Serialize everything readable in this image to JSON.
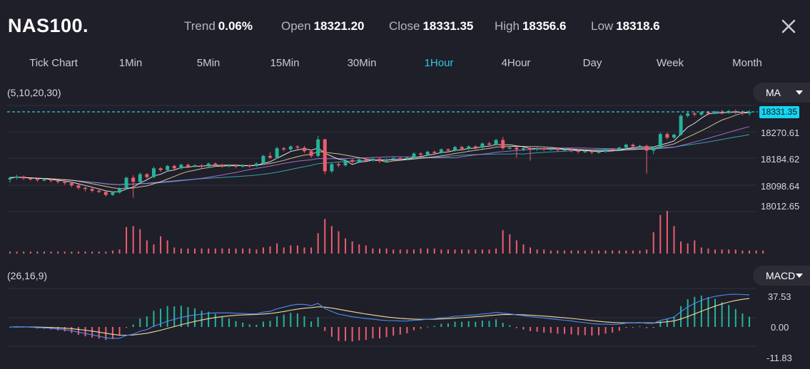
{
  "header": {
    "symbol": "NAS100.",
    "trend_label": "Trend",
    "trend_value": "0.06%",
    "open_label": "Open",
    "open_value": "18321.20",
    "close_label": "Close",
    "close_value": "18331.35",
    "high_label": "High",
    "high_value": "18356.6",
    "low_label": "Low",
    "low_value": "18318.6"
  },
  "timeframes": [
    "Tick Chart",
    "1Min",
    "5Min",
    "15Min",
    "30Min",
    "1Hour",
    "4Hour",
    "Day",
    "Week",
    "Month"
  ],
  "active_timeframe": "1Hour",
  "main_panel": {
    "params": "(5,10,20,30)",
    "indicator": "MA",
    "current_price": "18331.35",
    "axis_labels": [
      "18270.61",
      "18184.62",
      "18098.64",
      "18012.65"
    ]
  },
  "macd_panel": {
    "params": "(26,16,9)",
    "indicator": "MACD",
    "axis_labels": [
      "37.53",
      "0.00",
      "-11.83"
    ]
  },
  "colors": {
    "background": "#1e1f29",
    "up": "#26b39a",
    "down": "#ef5c6e",
    "accent": "#2ec9e2",
    "ma5": "#ffffff",
    "ma10": "#f2d9a0",
    "ma20": "#b37cf0",
    "ma30": "#3fb4c8",
    "dif": "#4c8df6",
    "dea": "#f2d9a0"
  },
  "icons": {
    "close": "close-icon",
    "dropdown": "caret-down-icon"
  },
  "chart_data": {
    "type": "candlestick",
    "ylim": [
      18012.65,
      18331.35
    ],
    "price_ticks": [
      18331.35,
      18270.61,
      18184.62,
      18098.64,
      18012.65
    ],
    "candles": [
      [
        18102,
        18108,
        18092,
        18112
      ],
      [
        18108,
        18112,
        18102,
        18118
      ],
      [
        18112,
        18106,
        18100,
        18116
      ],
      [
        18106,
        18104,
        18098,
        18110
      ],
      [
        18104,
        18100,
        18094,
        18108
      ],
      [
        18100,
        18102,
        18096,
        18106
      ],
      [
        18102,
        18098,
        18092,
        18106
      ],
      [
        18098,
        18094,
        18088,
        18102
      ],
      [
        18094,
        18090,
        18084,
        18098
      ],
      [
        18090,
        18082,
        18076,
        18094
      ],
      [
        18082,
        18074,
        18068,
        18086
      ],
      [
        18074,
        18070,
        18062,
        18078
      ],
      [
        18070,
        18064,
        18058,
        18074
      ],
      [
        18064,
        18060,
        18056,
        18068
      ],
      [
        18060,
        18050,
        18044,
        18064
      ],
      [
        18050,
        18058,
        18046,
        18062
      ],
      [
        18058,
        18072,
        18054,
        18076
      ],
      [
        18072,
        18108,
        18068,
        18112
      ],
      [
        18108,
        18094,
        18040,
        18116
      ],
      [
        18094,
        18120,
        18090,
        18126
      ],
      [
        18120,
        18110,
        18104,
        18124
      ],
      [
        18110,
        18140,
        18106,
        18146
      ],
      [
        18140,
        18134,
        18128,
        18144
      ],
      [
        18134,
        18148,
        18130,
        18152
      ],
      [
        18148,
        18140,
        18134,
        18152
      ],
      [
        18140,
        18152,
        18136,
        18156
      ],
      [
        18152,
        18146,
        18140,
        18156
      ],
      [
        18146,
        18150,
        18142,
        18154
      ],
      [
        18150,
        18146,
        18140,
        18154
      ],
      [
        18146,
        18156,
        18142,
        18160
      ],
      [
        18156,
        18152,
        18146,
        18160
      ],
      [
        18152,
        18148,
        18142,
        18156
      ],
      [
        18148,
        18150,
        18144,
        18154
      ],
      [
        18150,
        18146,
        18140,
        18154
      ],
      [
        18146,
        18150,
        18142,
        18154
      ],
      [
        18150,
        18148,
        18142,
        18154
      ],
      [
        18148,
        18156,
        18144,
        18160
      ],
      [
        18156,
        18182,
        18152,
        18186
      ],
      [
        18182,
        18176,
        18172,
        18194
      ],
      [
        18176,
        18208,
        18172,
        18214
      ],
      [
        18208,
        18204,
        18198,
        18212
      ],
      [
        18204,
        18214,
        18198,
        18218
      ],
      [
        18214,
        18210,
        18204,
        18218
      ],
      [
        18210,
        18198,
        18192,
        18216
      ],
      [
        18198,
        18182,
        18176,
        18202
      ],
      [
        18182,
        18238,
        18178,
        18250
      ],
      [
        18238,
        18130,
        18120,
        18240
      ],
      [
        18130,
        18154,
        18124,
        18160
      ],
      [
        18154,
        18150,
        18144,
        18160
      ],
      [
        18150,
        18168,
        18146,
        18172
      ],
      [
        18168,
        18162,
        18156,
        18172
      ],
      [
        18162,
        18170,
        18158,
        18174
      ],
      [
        18170,
        18166,
        18160,
        18174
      ],
      [
        18166,
        18172,
        18162,
        18176
      ],
      [
        18172,
        18164,
        18158,
        18176
      ],
      [
        18164,
        18170,
        18160,
        18174
      ],
      [
        18170,
        18174,
        18166,
        18178
      ],
      [
        18174,
        18172,
        18166,
        18178
      ],
      [
        18172,
        18176,
        18168,
        18180
      ],
      [
        18176,
        18190,
        18172,
        18194
      ],
      [
        18190,
        18186,
        18180,
        18194
      ],
      [
        18186,
        18196,
        18182,
        18200
      ],
      [
        18196,
        18192,
        18186,
        18200
      ],
      [
        18192,
        18204,
        18188,
        18208
      ],
      [
        18204,
        18200,
        18194,
        18208
      ],
      [
        18200,
        18212,
        18196,
        18216
      ],
      [
        18212,
        18206,
        18200,
        18216
      ],
      [
        18206,
        18214,
        18200,
        18218
      ],
      [
        18214,
        18210,
        18204,
        18218
      ],
      [
        18210,
        18224,
        18206,
        18228
      ],
      [
        18224,
        18220,
        18214,
        18230
      ],
      [
        18220,
        18236,
        18216,
        18240
      ],
      [
        18236,
        18208,
        18202,
        18246
      ],
      [
        18208,
        18210,
        18204,
        18214
      ],
      [
        18210,
        18204,
        18176,
        18214
      ],
      [
        18204,
        18208,
        18198,
        18212
      ],
      [
        18208,
        18204,
        18166,
        18212
      ],
      [
        18204,
        18208,
        18198,
        18212
      ],
      [
        18208,
        18204,
        18198,
        18212
      ],
      [
        18204,
        18206,
        18200,
        18210
      ],
      [
        18206,
        18202,
        18196,
        18210
      ],
      [
        18202,
        18204,
        18198,
        18208
      ],
      [
        18204,
        18200,
        18194,
        18208
      ],
      [
        18200,
        18196,
        18190,
        18204
      ],
      [
        18196,
        18198,
        18192,
        18202
      ],
      [
        18198,
        18194,
        18188,
        18202
      ],
      [
        18194,
        18196,
        18190,
        18200
      ],
      [
        18196,
        18204,
        18192,
        18208
      ],
      [
        18204,
        18202,
        18196,
        18208
      ],
      [
        18202,
        18210,
        18198,
        18214
      ],
      [
        18210,
        18220,
        18206,
        18224
      ],
      [
        18220,
        18214,
        18208,
        18224
      ],
      [
        18214,
        18216,
        18210,
        18220
      ],
      [
        18216,
        18200,
        18122,
        18220
      ],
      [
        18200,
        18210,
        18188,
        18214
      ],
      [
        18210,
        18256,
        18206,
        18262
      ],
      [
        18256,
        18244,
        18238,
        18262
      ],
      [
        18244,
        18254,
        18240,
        18258
      ],
      [
        18254,
        18318,
        18250,
        18324
      ],
      [
        18318,
        18326,
        18312,
        18334
      ],
      [
        18326,
        18322,
        18316,
        18330
      ],
      [
        18322,
        18330,
        18318,
        18334
      ],
      [
        18330,
        18326,
        18320,
        18334
      ],
      [
        18326,
        18332,
        18322,
        18336
      ],
      [
        18332,
        18328,
        18322,
        18338
      ],
      [
        18328,
        18334,
        18324,
        18338
      ],
      [
        18334,
        18330,
        18324,
        18340
      ],
      [
        18330,
        18326,
        18320,
        18336
      ],
      [
        18326,
        18331,
        18318,
        18338
      ]
    ],
    "volume": [
      2,
      2,
      2,
      2,
      2,
      2,
      2,
      2,
      2,
      2,
      2,
      2,
      2,
      2,
      2,
      3,
      4,
      26,
      27,
      24,
      13,
      9,
      17,
      13,
      6,
      5,
      5,
      5,
      5,
      5,
      5,
      5,
      5,
      5,
      5,
      5,
      4,
      6,
      7,
      10,
      6,
      8,
      8,
      6,
      6,
      20,
      34,
      27,
      22,
      15,
      12,
      9,
      8,
      5,
      5,
      5,
      4,
      4,
      4,
      4,
      5,
      5,
      5,
      4,
      4,
      4,
      4,
      4,
      4,
      4,
      4,
      5,
      23,
      19,
      13,
      9,
      6,
      4,
      4,
      3,
      3,
      3,
      3,
      3,
      3,
      3,
      3,
      3,
      3,
      3,
      3,
      3,
      3,
      4,
      21,
      38,
      42,
      27,
      12,
      10,
      13,
      6,
      5,
      4,
      4,
      4,
      4,
      3,
      3,
      3,
      3
    ]
  }
}
